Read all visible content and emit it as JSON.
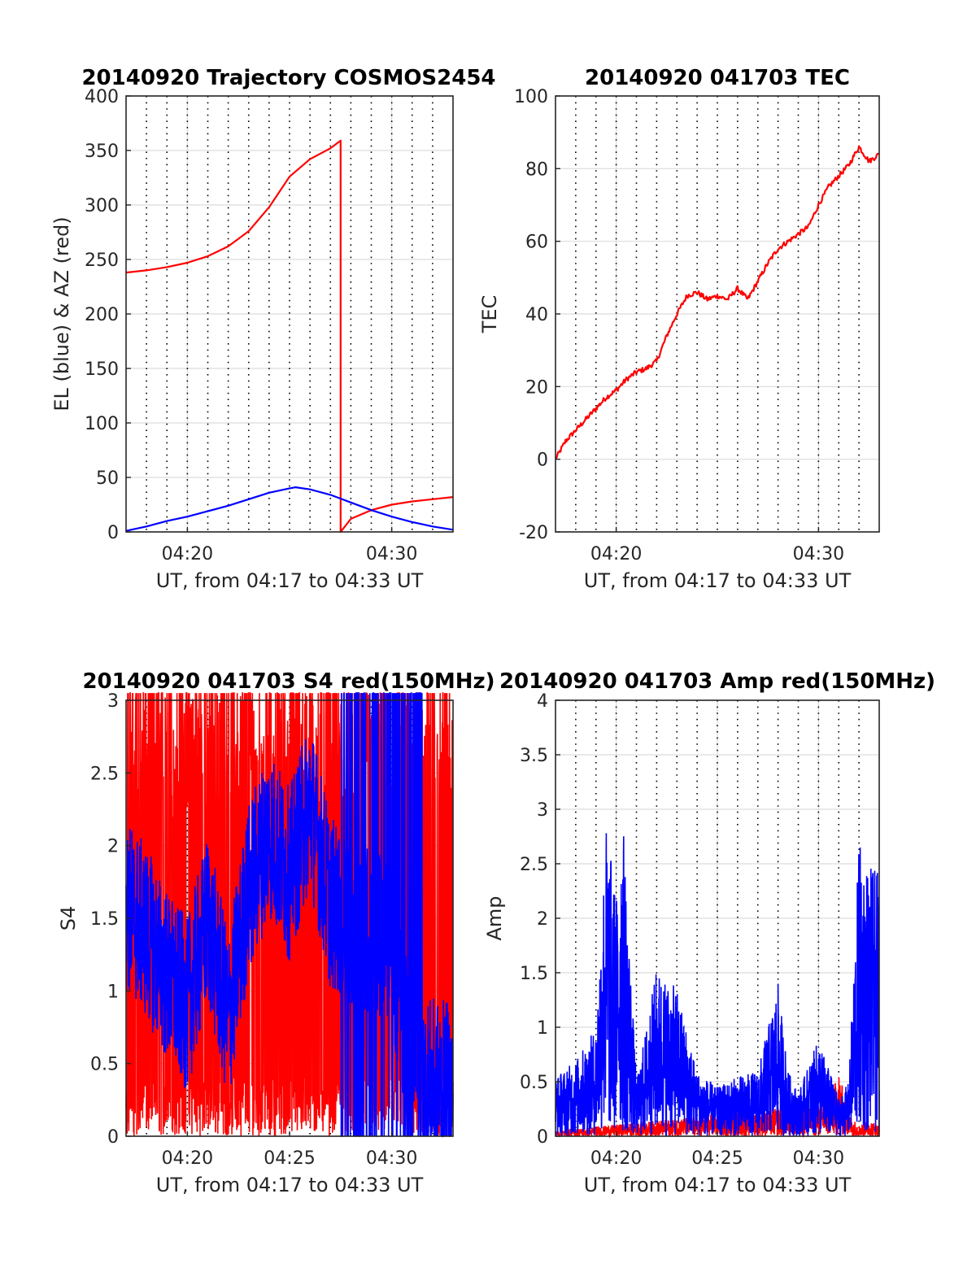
{
  "chart_data": [
    {
      "id": "trajectory",
      "type": "line",
      "title": "20140920 Trajectory COSMOS2454",
      "xlabel": "UT, from 04:17 to 04:33 UT",
      "ylabel": "EL (blue) & AZ (red)",
      "xlim": [
        "04:17",
        "04:33"
      ],
      "ylim": [
        0,
        400
      ],
      "x_ticks": [
        "04:20",
        "04:30"
      ],
      "y_ticks": [
        "0",
        "50",
        "100",
        "150",
        "200",
        "250",
        "300",
        "350",
        "400"
      ],
      "grid": "on (solid horizontal, dotted vertical every minute)",
      "series": [
        {
          "color": "#ff0000",
          "x": [
            "04:17",
            "04:18",
            "04:19",
            "04:20",
            "04:21",
            "04:22",
            "04:23",
            "04:24",
            "04:25",
            "04:26",
            "04:27",
            "04:27.5",
            "04:27.5",
            "04:28",
            "04:29",
            "04:30",
            "04:31",
            "04:32",
            "04:33"
          ],
          "values": [
            238,
            240,
            243,
            247,
            253,
            262,
            276,
            298,
            326,
            342,
            352,
            359,
            0,
            12,
            20,
            25,
            28,
            30,
            32
          ]
        },
        {
          "color": "#0000ff",
          "x": [
            "04:17",
            "04:18",
            "04:19",
            "04:20",
            "04:21",
            "04:22",
            "04:23",
            "04:24",
            "04:25",
            "04:25.3",
            "04:26",
            "04:27",
            "04:28",
            "04:29",
            "04:30",
            "04:31",
            "04:32",
            "04:33"
          ],
          "values": [
            1,
            5,
            10,
            14,
            19,
            24,
            30,
            36,
            40,
            41,
            39,
            34,
            27,
            20,
            14,
            9,
            5,
            2
          ]
        }
      ]
    },
    {
      "id": "tec",
      "type": "line",
      "title": "20140920 041703 TEC",
      "xlabel": "UT, from 04:17 to 04:33 UT",
      "ylabel": "TEC",
      "xlim": [
        "04:17",
        "04:33"
      ],
      "ylim": [
        -20,
        100
      ],
      "x_ticks": [
        "04:20",
        "04:30"
      ],
      "y_ticks": [
        "-20",
        "0",
        "20",
        "40",
        "60",
        "80",
        "100"
      ],
      "grid": "on",
      "series": [
        {
          "color": "#ff0000",
          "x": [
            "04:17",
            "04:17.5",
            "04:18",
            "04:18.5",
            "04:19",
            "04:19.5",
            "04:20",
            "04:20.5",
            "04:21",
            "04:21.5",
            "04:22",
            "04:22.5",
            "04:23",
            "04:23.5",
            "04:24",
            "04:24.5",
            "04:25",
            "04:25.5",
            "04:26",
            "04:26.5",
            "04:27",
            "04:27.5",
            "04:28",
            "04:28.5",
            "04:29",
            "04:29.5",
            "04:30",
            "04:30.5",
            "04:31",
            "04:31.5",
            "04:32",
            "04:32.5",
            "04:33"
          ],
          "values": [
            0,
            5,
            8,
            11,
            14,
            17,
            19,
            22,
            24,
            25,
            27,
            34,
            40,
            45,
            46,
            44,
            45,
            44,
            47,
            44,
            49,
            54,
            58,
            60,
            62,
            64,
            70,
            75,
            78,
            81,
            86,
            82,
            84
          ]
        }
      ]
    },
    {
      "id": "s4",
      "type": "line",
      "title": "20140920 041703 S4 red(150MHz)",
      "xlabel": "UT, from 04:17 to 04:33 UT",
      "ylabel": "S4",
      "xlim": [
        "04:17",
        "04:33"
      ],
      "ylim": [
        0,
        3
      ],
      "x_ticks": [
        "04:20",
        "04:25",
        "04:30"
      ],
      "y_ticks": [
        "0",
        "0.5",
        "1",
        "1.5",
        "2",
        "2.5",
        "3"
      ],
      "grid": "on",
      "series": [
        {
          "color": "#ff0000",
          "x": [
            "04:17",
            "04:18",
            "04:19",
            "04:20",
            "04:21",
            "04:22",
            "04:23",
            "04:24",
            "04:25",
            "04:26",
            "04:27",
            "04:28",
            "04:29",
            "04:30",
            "04:31",
            "04:32",
            "04:33"
          ],
          "values": [
            0.2,
            3.0,
            0.1,
            2.8,
            0.2,
            3.0,
            0.3,
            2.6,
            0.1,
            3.0,
            0.2,
            2.7,
            0.1,
            1.5,
            0.2,
            3.0,
            0.5
          ]
        },
        {
          "color": "#0000ff",
          "x": [
            "04:17",
            "04:18",
            "04:19",
            "04:20",
            "04:21",
            "04:22",
            "04:23",
            "04:24",
            "04:25",
            "04:26",
            "04:27",
            "04:28",
            "04:29",
            "04:30",
            "04:31",
            "04:32",
            "04:33"
          ],
          "values": [
            1.6,
            1.4,
            1.1,
            0.9,
            1.5,
            0.8,
            1.7,
            2.1,
            1.8,
            2.3,
            1.6,
            1.5,
            1.4,
            1.3,
            0.4,
            0.35,
            0.33
          ]
        }
      ]
    },
    {
      "id": "amp",
      "type": "line",
      "title": "20140920 041703 Amp red(150MHz)",
      "xlabel": "UT, from 04:17 to 04:33 UT",
      "ylabel": "Amp",
      "xlim": [
        "04:17",
        "04:33"
      ],
      "ylim": [
        0,
        4
      ],
      "x_ticks": [
        "04:20",
        "04:25",
        "04:30"
      ],
      "y_ticks": [
        "0",
        "0.5",
        "1",
        "1.5",
        "2",
        "2.5",
        "3",
        "3.5",
        "4"
      ],
      "grid": "on",
      "series": [
        {
          "color": "#ff0000",
          "x": [
            "04:17",
            "04:30.5",
            "04:31",
            "04:31.5",
            "04:32",
            "04:32.5",
            "04:33"
          ],
          "values": [
            0.05,
            0.3,
            0.6,
            0.2,
            0.1,
            0.15,
            0.1
          ]
        },
        {
          "color": "#0000ff",
          "x": [
            "04:17",
            "04:18",
            "04:19",
            "04:19.5",
            "04:20",
            "04:20.3",
            "04:21",
            "04:22",
            "04:23",
            "04:24",
            "04:25",
            "04:26",
            "04:27",
            "04:28",
            "04:28.5",
            "04:29",
            "04:30",
            "04:31",
            "04:31.5",
            "04:32",
            "04:32.5",
            "04:33"
          ],
          "values": [
            0.55,
            0.7,
            1.0,
            2.9,
            2.2,
            3.05,
            0.5,
            1.55,
            1.35,
            0.6,
            0.45,
            0.55,
            0.6,
            1.4,
            0.6,
            0.4,
            0.9,
            0.35,
            0.5,
            2.7,
            2.5,
            2.4
          ]
        }
      ]
    }
  ]
}
